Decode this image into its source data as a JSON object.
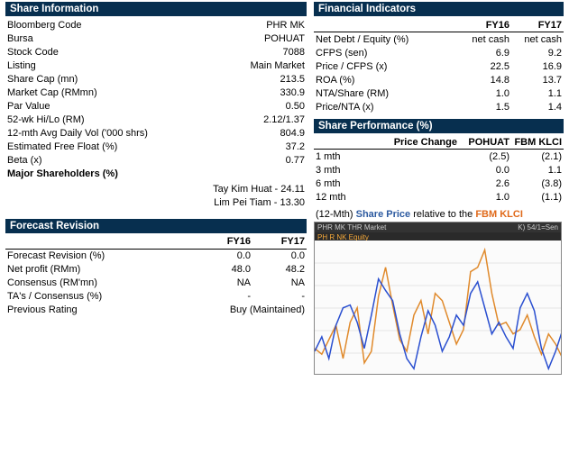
{
  "shareInfo": {
    "header": "Share Information",
    "rows": [
      {
        "label": "Bloomberg Code",
        "value": "PHR MK"
      },
      {
        "label": "Bursa",
        "value": "POHUAT"
      },
      {
        "label": "Stock Code",
        "value": "7088"
      },
      {
        "label": "Listing",
        "value": "Main Market"
      },
      {
        "label": "Share Cap (mn)",
        "value": "213.5"
      },
      {
        "label": "Market Cap (RMmn)",
        "value": "330.9"
      },
      {
        "label": "Par Value",
        "value": "0.50"
      },
      {
        "label": "52-wk Hi/Lo (RM)",
        "value": "2.12/1.37"
      },
      {
        "label": "12-mth Avg Daily Vol ('000 shrs)",
        "value": "804.9"
      },
      {
        "label": "Estimated Free Float (%)",
        "value": "37.2"
      },
      {
        "label": "Beta (x)",
        "value": "0.77"
      }
    ],
    "majorShLabel": "Major Shareholders (%)",
    "majorSh": [
      "Tay Kim Huat - 24.11",
      "Lim Pei Tiam - 13.30"
    ]
  },
  "forecast": {
    "header": "Forecast Revision",
    "col1": "FY16",
    "col2": "FY17",
    "rows": [
      {
        "label": "Forecast Revision  (%)",
        "v1": "0.0",
        "v2": "0.0"
      },
      {
        "label": "Net profit (RMm)",
        "v1": "48.0",
        "v2": "48.2"
      },
      {
        "label": "Consensus (RM'mn)",
        "v1": "NA",
        "v2": "NA"
      },
      {
        "label": "TA's  / Consensus (%)",
        "v1": "-",
        "v2": "-"
      },
      {
        "label": "Previous Rating",
        "span": "Buy (Maintained)"
      }
    ]
  },
  "finInd": {
    "header": "Financial Indicators",
    "col1": "FY16",
    "col2": "FY17",
    "rows": [
      {
        "label": "Net Debt / Equity (%)",
        "v1": "net cash",
        "v2": "net cash"
      },
      {
        "label": "CFPS  (sen)",
        "v1": "6.9",
        "v2": "9.2"
      },
      {
        "label": "Price / CFPS (x)",
        "v1": "22.5",
        "v2": "16.9"
      },
      {
        "label": "ROA (%)",
        "v1": "14.8",
        "v2": "13.7"
      },
      {
        "label": "NTA/Share (RM)",
        "v1": "1.0",
        "v2": "1.1"
      },
      {
        "label": "Price/NTA (x)",
        "v1": "1.5",
        "v2": "1.4"
      }
    ]
  },
  "sharePerf": {
    "header": "Share Performance (%)",
    "col0": "Price Change",
    "col1": "POHUAT",
    "col2": "FBM KLCI",
    "rows": [
      {
        "label": "1 mth",
        "v1": "(2.5)",
        "v2": "(2.1)"
      },
      {
        "label": "3 mth",
        "v1": "0.0",
        "v2": "1.1"
      },
      {
        "label": "6 mth",
        "v1": "2.6",
        "v2": "(3.8)"
      },
      {
        "label": "12 mth",
        "v1": "1.0",
        "v2": "(1.1)"
      }
    ]
  },
  "chart": {
    "titleParts": {
      "t1": "(12-Mth) ",
      "t2": "Share Price",
      "t3": " relative to the ",
      "t4": "FBM KLCI"
    },
    "topLeft": "PHR MK  THR Market",
    "topRight": "K) 54/1=Sen",
    "sub": "PH R NK Equity",
    "colors": {
      "line1": "#e08a2c",
      "line2": "#2a4fd0",
      "grid": "#cfcfcf",
      "bg": "#fbfbfb"
    },
    "series1": [
      62,
      58,
      68,
      78,
      55,
      80,
      90,
      52,
      60,
      98,
      118,
      92,
      68,
      60,
      85,
      95,
      72,
      100,
      95,
      80,
      65,
      75,
      115,
      118,
      130,
      100,
      78,
      80,
      72,
      75,
      85,
      70,
      58,
      72,
      65,
      55
    ],
    "series2": [
      60,
      70,
      55,
      78,
      90,
      92,
      80,
      62,
      85,
      110,
      102,
      95,
      72,
      55,
      48,
      70,
      88,
      78,
      60,
      70,
      85,
      78,
      100,
      108,
      90,
      72,
      80,
      70,
      62,
      90,
      100,
      88,
      62,
      48,
      60,
      75
    ]
  }
}
